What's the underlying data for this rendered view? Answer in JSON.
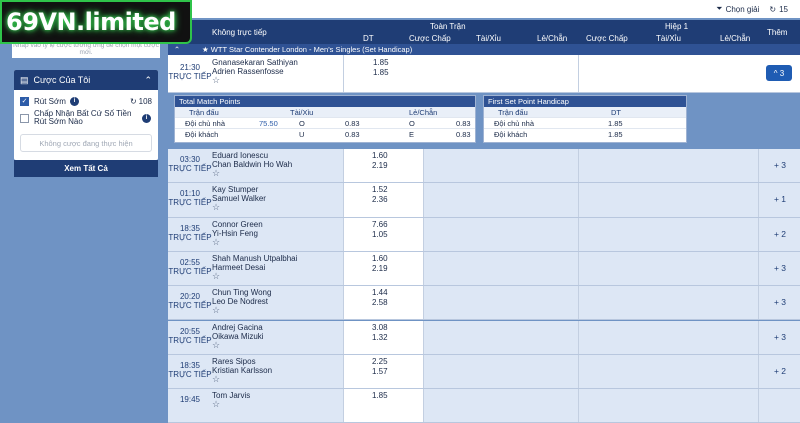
{
  "logo": {
    "text": "69VN.limited"
  },
  "sidebar": {
    "top_text": "Nhấp vào tỷ lệ cược tương ứng để chọn một cược mới.",
    "title": "Cược Của Tôi",
    "cashout_label": "Rút Sớm",
    "cashout_count": "108",
    "accept_label": "Chấp Nhận Bất Cứ Số Tiền Rút Sớm Nào",
    "empty_text": "Không cược đang thực hiện",
    "see_all": "Xem Tất Cả"
  },
  "toolbar": {
    "choose_label": "Chọn giải",
    "refresh_count": "15"
  },
  "header": {
    "col_match": "Không trực tiếp",
    "full_time": "Toàn Trận",
    "first_half": "Hiệp 1",
    "more": "Thêm",
    "dt": "DT",
    "handicap": "Cược Chấp",
    "over_under": "Tài/Xỉu",
    "odd_even": "Lẻ/Chẵn",
    "handicap2": "Cược Chấp",
    "over_under2": "Tài/Xỉu",
    "odd_even2": "Lẻ/Chẵn"
  },
  "league": {
    "name": "★ WTT Star Contender London - Men's Singles (Set Handicap)"
  },
  "first_match": {
    "time": "21:30",
    "status": "TRỰC TIẾP",
    "home": "Gnanasekaran Sathiyan",
    "away": "Adrien Rassenfosse",
    "odd1": "1.85",
    "odd2": "1.85",
    "more": "^ 3"
  },
  "detail_left": {
    "title": "Total Match Points",
    "h_match": "Trận đấu",
    "h_ou": "Tài/Xỉu",
    "h_oe": "Lẻ/Chẵn",
    "r1_label": "Đội chủ nhà",
    "r1_line": "75.50",
    "r1_o": "O",
    "r1_o_val": "0.83",
    "r1_oe": "O",
    "r1_oe_val": "0.83",
    "r2_label": "Đội khách",
    "r2_u": "U",
    "r2_u_val": "0.83",
    "r2_oe": "E",
    "r2_oe_val": "0.83"
  },
  "detail_right": {
    "title": "First Set Point Handicap",
    "h_match": "Trận đấu",
    "h_dt": "DT",
    "r1_label": "Đội chủ nhà",
    "r1_val": "1.85",
    "r2_label": "Đội khách",
    "r2_val": "1.85"
  },
  "matches": [
    {
      "time": "03:30",
      "status": "TRỰC TIẾP",
      "home": "Eduard Ionescu",
      "away": "Chan Baldwin Ho Wah",
      "odd1": "1.60",
      "odd2": "2.19",
      "more": "+ 3"
    },
    {
      "time": "01:10",
      "status": "TRỰC TIẾP",
      "home": "Kay Stumper",
      "away": "Samuel Walker",
      "odd1": "1.52",
      "odd2": "2.36",
      "more": "+ 1"
    },
    {
      "time": "18:35",
      "status": "TRỰC TIẾP",
      "home": "Connor Green",
      "away": "Yi-Hsin Feng",
      "odd1": "7.66",
      "odd2": "1.05",
      "more": "+ 2"
    },
    {
      "time": "02:55",
      "status": "TRỰC TIẾP",
      "home": "Shah Manush Utpalbhai",
      "away": "Harmeet Desai",
      "odd1": "1.60",
      "odd2": "2.19",
      "more": "+ 3"
    },
    {
      "time": "20:20",
      "status": "TRỰC TIẾP",
      "home": "Chun Ting Wong",
      "away": "Leo De Nodrest",
      "odd1": "1.44",
      "odd2": "2.58",
      "more": "+ 3"
    },
    {
      "time": "20:55",
      "status": "TRỰC TIẾP",
      "home": "Andrej Gacina",
      "away": "Oikawa Mizuki",
      "odd1": "3.08",
      "odd2": "1.32",
      "more": "+ 3"
    },
    {
      "time": "18:35",
      "status": "TRỰC TIẾP",
      "home": "Rares Sipos",
      "away": "Kristian Karlsson",
      "odd1": "2.25",
      "odd2": "1.57",
      "more": "+ 2"
    },
    {
      "time": "19:45",
      "status": "",
      "home": "Tom Jarvis",
      "away": "",
      "odd1": "1.85",
      "odd2": "",
      "more": ""
    }
  ]
}
